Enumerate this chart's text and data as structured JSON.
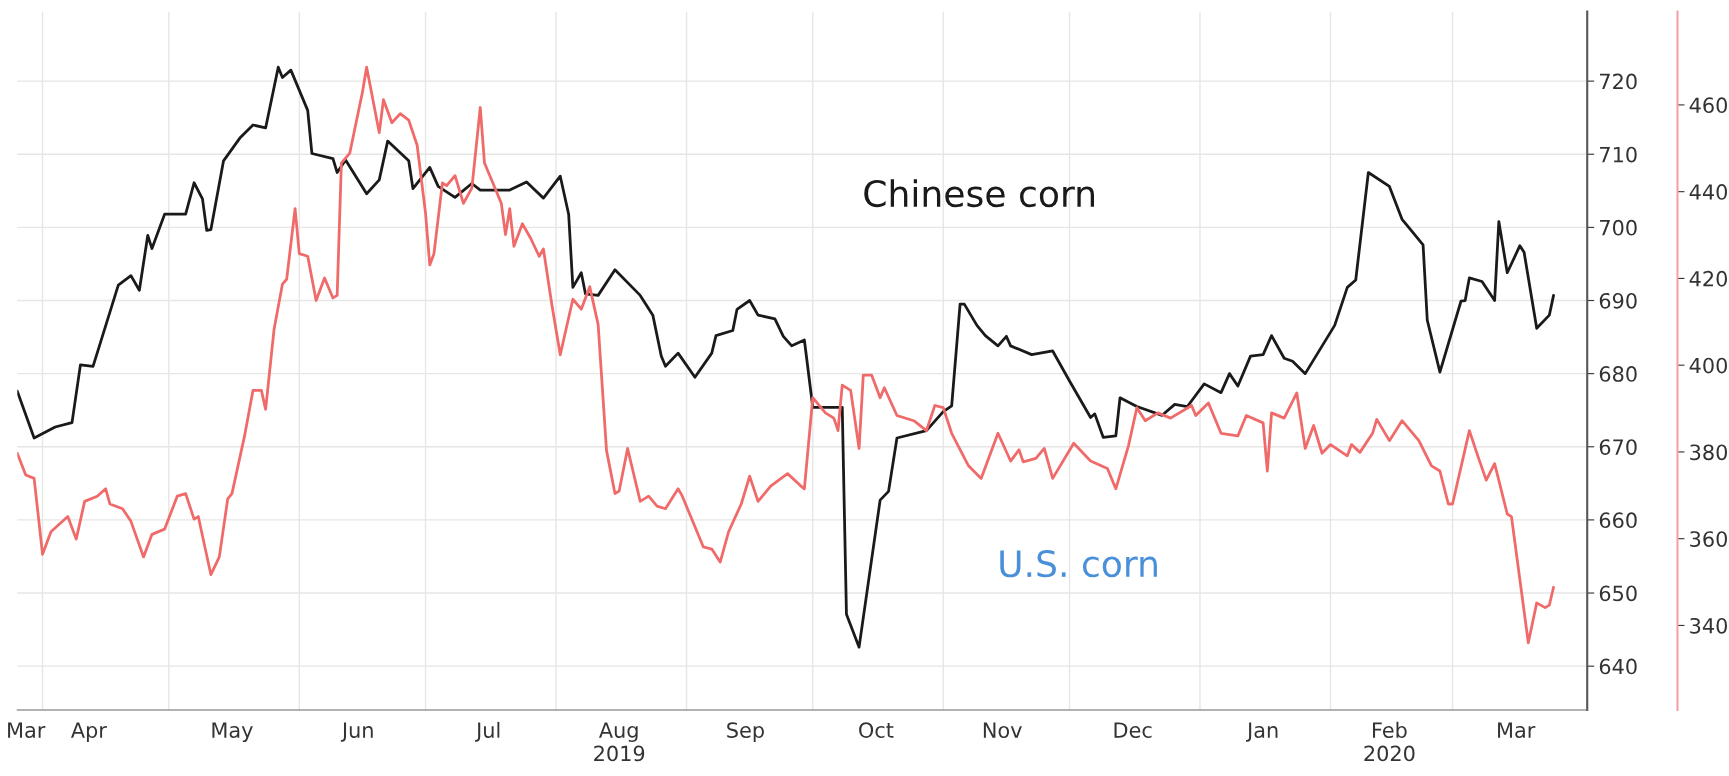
{
  "chart_data": {
    "type": "line",
    "xlim": [
      "2019-03-26",
      "2020-04-02"
    ],
    "xticks": [
      {
        "value": "2019-03-28",
        "label": "Mar"
      },
      {
        "value": "2019-04-01",
        "label": null
      },
      {
        "value": "2019-04-12",
        "label": "Apr"
      },
      {
        "value": "2019-05-01",
        "label": null
      },
      {
        "value": "2019-05-16",
        "label": "May"
      },
      {
        "value": "2019-06-01",
        "label": null
      },
      {
        "value": "2019-06-15",
        "label": "Jun"
      },
      {
        "value": "2019-07-01",
        "label": null
      },
      {
        "value": "2019-07-16",
        "label": "Jul"
      },
      {
        "value": "2019-08-01",
        "label": null
      },
      {
        "value": "2019-08-16",
        "label": "Aug\n2019"
      },
      {
        "value": "2019-09-01",
        "label": null
      },
      {
        "value": "2019-09-15",
        "label": "Sep"
      },
      {
        "value": "2019-10-01",
        "label": null
      },
      {
        "value": "2019-10-16",
        "label": "Oct"
      },
      {
        "value": "2019-11-01",
        "label": null
      },
      {
        "value": "2019-11-15",
        "label": "Nov"
      },
      {
        "value": "2019-12-01",
        "label": null
      },
      {
        "value": "2019-12-16",
        "label": "Dec"
      },
      {
        "value": "2020-01-01",
        "label": null
      },
      {
        "value": "2020-01-16",
        "label": "Jan"
      },
      {
        "value": "2020-02-01",
        "label": null
      },
      {
        "value": "2020-02-15",
        "label": "Feb\n2020"
      },
      {
        "value": "2020-03-01",
        "label": null
      },
      {
        "value": "2020-03-16",
        "label": "Mar"
      }
    ],
    "ylim": [
      634,
      729.5
    ],
    "yticks": [
      640,
      650,
      660,
      670,
      680,
      690,
      700,
      710,
      720
    ],
    "y2lim": [
      320.5,
      481.5
    ],
    "y2ticks": [
      340,
      360,
      380,
      400,
      420,
      440,
      460
    ],
    "grid": true,
    "legend": false,
    "annotations": [
      "Chinese corn",
      "U.S. corn"
    ],
    "series": [
      {
        "color": "#1a1a1a",
        "x": [
          "2019-03-26",
          "2019-03-30",
          "2019-04-04",
          "2019-04-08",
          "2019-04-10",
          "2019-04-13",
          "2019-04-19",
          "2019-04-22",
          "2019-04-24",
          "2019-04-26",
          "2019-04-27",
          "2019-04-30",
          "2019-05-05",
          "2019-05-07",
          "2019-05-09",
          "2019-05-10",
          "2019-05-11",
          "2019-05-14",
          "2019-05-18",
          "2019-05-21",
          "2019-05-24",
          "2019-05-27",
          "2019-05-28",
          "2019-05-30",
          "2019-06-03",
          "2019-06-04",
          "2019-06-09",
          "2019-06-10",
          "2019-06-12",
          "2019-06-17",
          "2019-06-20",
          "2019-06-22",
          "2019-06-27",
          "2019-06-28",
          "2019-07-02",
          "2019-07-04",
          "2019-07-08",
          "2019-07-12",
          "2019-07-14",
          "2019-07-21",
          "2019-07-25",
          "2019-07-29",
          "2019-08-02",
          "2019-08-04",
          "2019-08-05",
          "2019-08-07",
          "2019-08-08",
          "2019-08-11",
          "2019-08-15",
          "2019-08-21",
          "2019-08-24",
          "2019-08-26",
          "2019-08-27",
          "2019-08-30",
          "2019-09-03",
          "2019-09-07",
          "2019-09-08",
          "2019-09-12",
          "2019-09-13",
          "2019-09-16",
          "2019-09-18",
          "2019-09-22",
          "2019-09-24",
          "2019-09-26",
          "2019-09-29",
          "2019-10-01",
          "2019-10-08",
          "2019-10-09",
          "2019-10-12",
          "2019-10-17",
          "2019-10-19",
          "2019-10-21",
          "2019-10-28",
          "2019-11-01",
          "2019-11-03",
          "2019-11-05",
          "2019-11-06",
          "2019-11-09",
          "2019-11-11",
          "2019-11-14",
          "2019-11-16",
          "2019-11-17",
          "2019-11-22",
          "2019-11-27",
          "2019-12-01",
          "2019-12-06",
          "2019-12-07",
          "2019-12-09",
          "2019-12-12",
          "2019-12-13",
          "2019-12-17",
          "2019-12-23",
          "2019-12-26",
          "2019-12-29",
          "2020-01-02",
          "2020-01-06",
          "2020-01-08",
          "2020-01-10",
          "2020-01-13",
          "2020-01-16",
          "2020-01-18",
          "2020-01-21",
          "2020-01-23",
          "2020-01-26",
          "2020-02-02",
          "2020-02-05",
          "2020-02-07",
          "2020-02-10",
          "2020-02-15",
          "2020-02-18",
          "2020-02-19",
          "2020-02-23",
          "2020-02-24",
          "2020-02-27",
          "2020-03-03",
          "2020-03-04",
          "2020-03-05",
          "2020-03-08",
          "2020-03-11",
          "2020-03-12",
          "2020-03-14",
          "2020-03-17",
          "2020-03-18",
          "2020-03-21",
          "2020-03-24",
          "2020-03-25"
        ],
        "values": [
          677.6,
          671.2,
          672.7,
          673.3,
          681.2,
          681.0,
          692.1,
          693.4,
          691.4,
          698.9,
          697.1,
          701.8,
          701.8,
          706.1,
          703.9,
          699.6,
          699.7,
          709.1,
          712.3,
          714.0,
          713.6,
          721.9,
          720.5,
          721.5,
          716.0,
          710.1,
          709.4,
          707.5,
          709.2,
          704.6,
          706.5,
          711.8,
          709.1,
          705.3,
          708.2,
          705.6,
          704.1,
          706.0,
          705.1,
          705.1,
          706.2,
          704.0,
          707.0,
          701.8,
          691.8,
          693.8,
          690.9,
          690.7,
          694.2,
          690.7,
          688.0,
          682.4,
          681.0,
          682.8,
          679.5,
          682.8,
          685.2,
          685.9,
          688.8,
          690.0,
          688.0,
          687.5,
          685.1,
          683.8,
          684.6,
          675.4,
          675.4,
          647.1,
          642.6,
          662.7,
          663.9,
          671.2,
          672.2,
          674.8,
          675.6,
          689.5,
          689.5,
          686.6,
          685.2,
          683.8,
          685.1,
          683.8,
          682.6,
          683.1,
          679.0,
          674.0,
          674.5,
          671.3,
          671.5,
          676.7,
          675.5,
          674.3,
          675.8,
          675.5,
          678.6,
          677.4,
          680.0,
          678.3,
          682.4,
          682.6,
          685.2,
          682.1,
          681.7,
          680.0,
          686.6,
          691.8,
          692.8,
          707.5,
          705.6,
          701.1,
          700.4,
          697.6,
          687.3,
          680.2,
          689.9,
          690.0,
          693.1,
          692.6,
          690.0,
          700.8,
          693.8,
          697.5,
          696.6,
          686.2,
          688.0,
          690.7
        ]
      },
      {
        "color": "#f06a6a",
        "axis": "y2",
        "x": [
          "2019-03-26",
          "2019-03-28",
          "2019-03-30",
          "2019-04-01",
          "2019-04-03",
          "2019-04-07",
          "2019-04-09",
          "2019-04-11",
          "2019-04-14",
          "2019-04-16",
          "2019-04-17",
          "2019-04-20",
          "2019-04-22",
          "2019-04-25",
          "2019-04-27",
          "2019-04-30",
          "2019-05-03",
          "2019-05-05",
          "2019-05-07",
          "2019-05-08",
          "2019-05-11",
          "2019-05-13",
          "2019-05-15",
          "2019-05-16",
          "2019-05-19",
          "2019-05-21",
          "2019-05-23",
          "2019-05-24",
          "2019-05-26",
          "2019-05-28",
          "2019-05-29",
          "2019-05-31",
          "2019-06-01",
          "2019-06-03",
          "2019-06-05",
          "2019-06-07",
          "2019-06-09",
          "2019-06-10",
          "2019-06-11",
          "2019-06-13",
          "2019-06-16",
          "2019-06-17",
          "2019-06-20",
          "2019-06-21",
          "2019-06-23",
          "2019-06-25",
          "2019-06-27",
          "2019-06-29",
          "2019-07-01",
          "2019-07-02",
          "2019-07-03",
          "2019-07-05",
          "2019-07-06",
          "2019-07-08",
          "2019-07-10",
          "2019-07-12",
          "2019-07-14",
          "2019-07-15",
          "2019-07-17",
          "2019-07-19",
          "2019-07-20",
          "2019-07-21",
          "2019-07-22",
          "2019-07-24",
          "2019-07-26",
          "2019-07-28",
          "2019-07-29",
          "2019-07-31",
          "2019-08-02",
          "2019-08-05",
          "2019-08-07",
          "2019-08-09",
          "2019-08-11",
          "2019-08-13",
          "2019-08-15",
          "2019-08-16",
          "2019-08-18",
          "2019-08-21",
          "2019-08-23",
          "2019-08-25",
          "2019-08-27",
          "2019-08-30",
          "2019-08-31",
          "2019-09-02",
          "2019-09-05",
          "2019-09-07",
          "2019-09-09",
          "2019-09-11",
          "2019-09-14",
          "2019-09-16",
          "2019-09-18",
          "2019-09-21",
          "2019-09-25",
          "2019-09-28",
          "2019-09-29",
          "2019-10-01",
          "2019-10-04",
          "2019-10-06",
          "2019-10-07",
          "2019-10-08",
          "2019-10-10",
          "2019-10-12",
          "2019-10-13",
          "2019-10-15",
          "2019-10-17",
          "2019-10-18",
          "2019-10-21",
          "2019-10-25",
          "2019-10-28",
          "2019-10-30",
          "2019-11-01",
          "2019-11-03",
          "2019-11-07",
          "2019-11-10",
          "2019-11-14",
          "2019-11-17",
          "2019-11-19",
          "2019-11-20",
          "2019-11-23",
          "2019-11-25",
          "2019-11-27",
          "2019-12-02",
          "2019-12-06",
          "2019-12-10",
          "2019-12-12",
          "2019-12-15",
          "2019-12-17",
          "2019-12-19",
          "2019-12-22",
          "2019-12-25",
          "2019-12-30",
          "2019-12-31",
          "2020-01-03",
          "2020-01-06",
          "2020-01-10",
          "2020-01-12",
          "2020-01-16",
          "2020-01-17",
          "2020-01-18",
          "2020-01-21",
          "2020-01-24",
          "2020-01-26",
          "2020-01-28",
          "2020-01-30",
          "2020-02-01",
          "2020-02-05",
          "2020-02-06",
          "2020-02-08",
          "2020-02-11",
          "2020-02-12",
          "2020-02-15",
          "2020-02-18",
          "2020-02-22",
          "2020-02-25",
          "2020-02-27",
          "2020-02-29",
          "2020-03-01",
          "2020-03-05",
          "2020-03-07",
          "2020-03-09",
          "2020-03-11",
          "2020-03-14",
          "2020-03-15",
          "2020-03-19",
          "2020-03-21",
          "2020-03-23",
          "2020-03-24",
          "2020-03-25"
        ],
        "values": [
          379.7,
          374.7,
          373.9,
          356.4,
          361.6,
          365.1,
          359.9,
          368.6,
          369.8,
          371.5,
          368.0,
          366.9,
          364.0,
          355.8,
          361.0,
          362.2,
          369.8,
          370.4,
          364.5,
          365.1,
          351.7,
          355.8,
          369.2,
          370.4,
          383.7,
          394.2,
          394.2,
          389.8,
          408.2,
          418.7,
          419.8,
          436.1,
          425.7,
          425.1,
          414.9,
          420.1,
          415.5,
          416.1,
          446.6,
          448.9,
          462.9,
          468.7,
          453.6,
          461.2,
          455.9,
          458.0,
          456.5,
          450.7,
          435.0,
          423.1,
          425.7,
          442.0,
          441.4,
          443.7,
          437.3,
          440.8,
          459.4,
          446.6,
          442.0,
          437.3,
          430.1,
          436.1,
          427.4,
          432.6,
          429.2,
          425.1,
          426.8,
          414.0,
          402.4,
          415.2,
          412.9,
          418.1,
          409.4,
          380.3,
          370.4,
          371.0,
          380.8,
          368.6,
          369.8,
          367.5,
          366.9,
          371.5,
          369.8,
          365.1,
          358.1,
          357.6,
          354.6,
          361.6,
          368.0,
          374.4,
          368.6,
          372.1,
          375.0,
          372.3,
          371.5,
          392.5,
          389.0,
          387.8,
          384.9,
          395.4,
          394.2,
          380.8,
          397.7,
          397.7,
          392.5,
          394.8,
          388.4,
          387.2,
          384.9,
          390.7,
          390.2,
          384.3,
          376.8,
          373.9,
          384.3,
          377.9,
          380.5,
          377.7,
          378.5,
          380.8,
          373.9,
          382.0,
          377.9,
          376.2,
          371.5,
          381.4,
          390.2,
          387.2,
          389.0,
          387.8,
          390.7,
          388.4,
          391.3,
          384.3,
          383.7,
          388.4,
          386.7,
          375.6,
          389.0,
          387.8,
          393.6,
          380.8,
          386.1,
          379.7,
          381.7,
          379.1,
          381.7,
          379.9,
          384.3,
          387.5,
          382.6,
          387.2,
          382.6,
          376.8,
          375.6,
          368.0,
          368.0,
          384.9,
          379.1,
          373.5,
          377.3,
          365.7,
          365.1,
          336.0,
          345.2,
          344.1,
          344.7,
          348.8
        ]
      }
    ]
  }
}
